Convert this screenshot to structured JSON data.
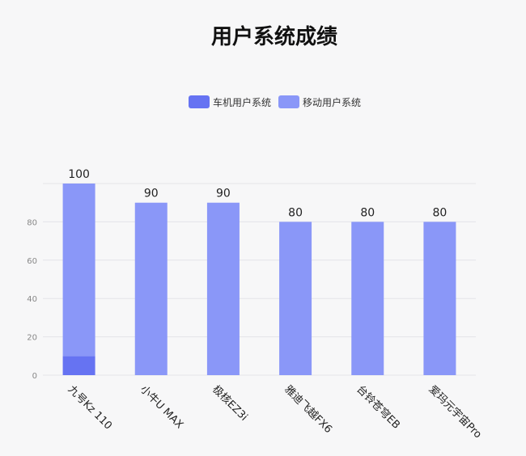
{
  "chart_data": {
    "type": "bar",
    "title": "用户系统成绩",
    "categories": [
      "九号Kz 110",
      "小牛U MAX",
      "极核EZ3i",
      "雅迪飞越FX6",
      "台铃苍穹EB",
      "爱玛元宇宙Pro"
    ],
    "series": [
      {
        "name": "车机用户系统",
        "values": [
          10,
          0,
          0,
          0,
          0,
          0
        ],
        "color": "#6673f2"
      },
      {
        "name": "移动用户系统",
        "values": [
          90,
          90,
          90,
          80,
          80,
          80
        ],
        "color": "#8a97f8"
      }
    ],
    "stacked": true,
    "total_labels": [
      "100",
      "90",
      "90",
      "80",
      "80",
      "80"
    ],
    "y_ticks": [
      0,
      20,
      40,
      60,
      80
    ],
    "ylim": [
      0,
      100
    ],
    "grid": true,
    "legend_position": "top"
  }
}
